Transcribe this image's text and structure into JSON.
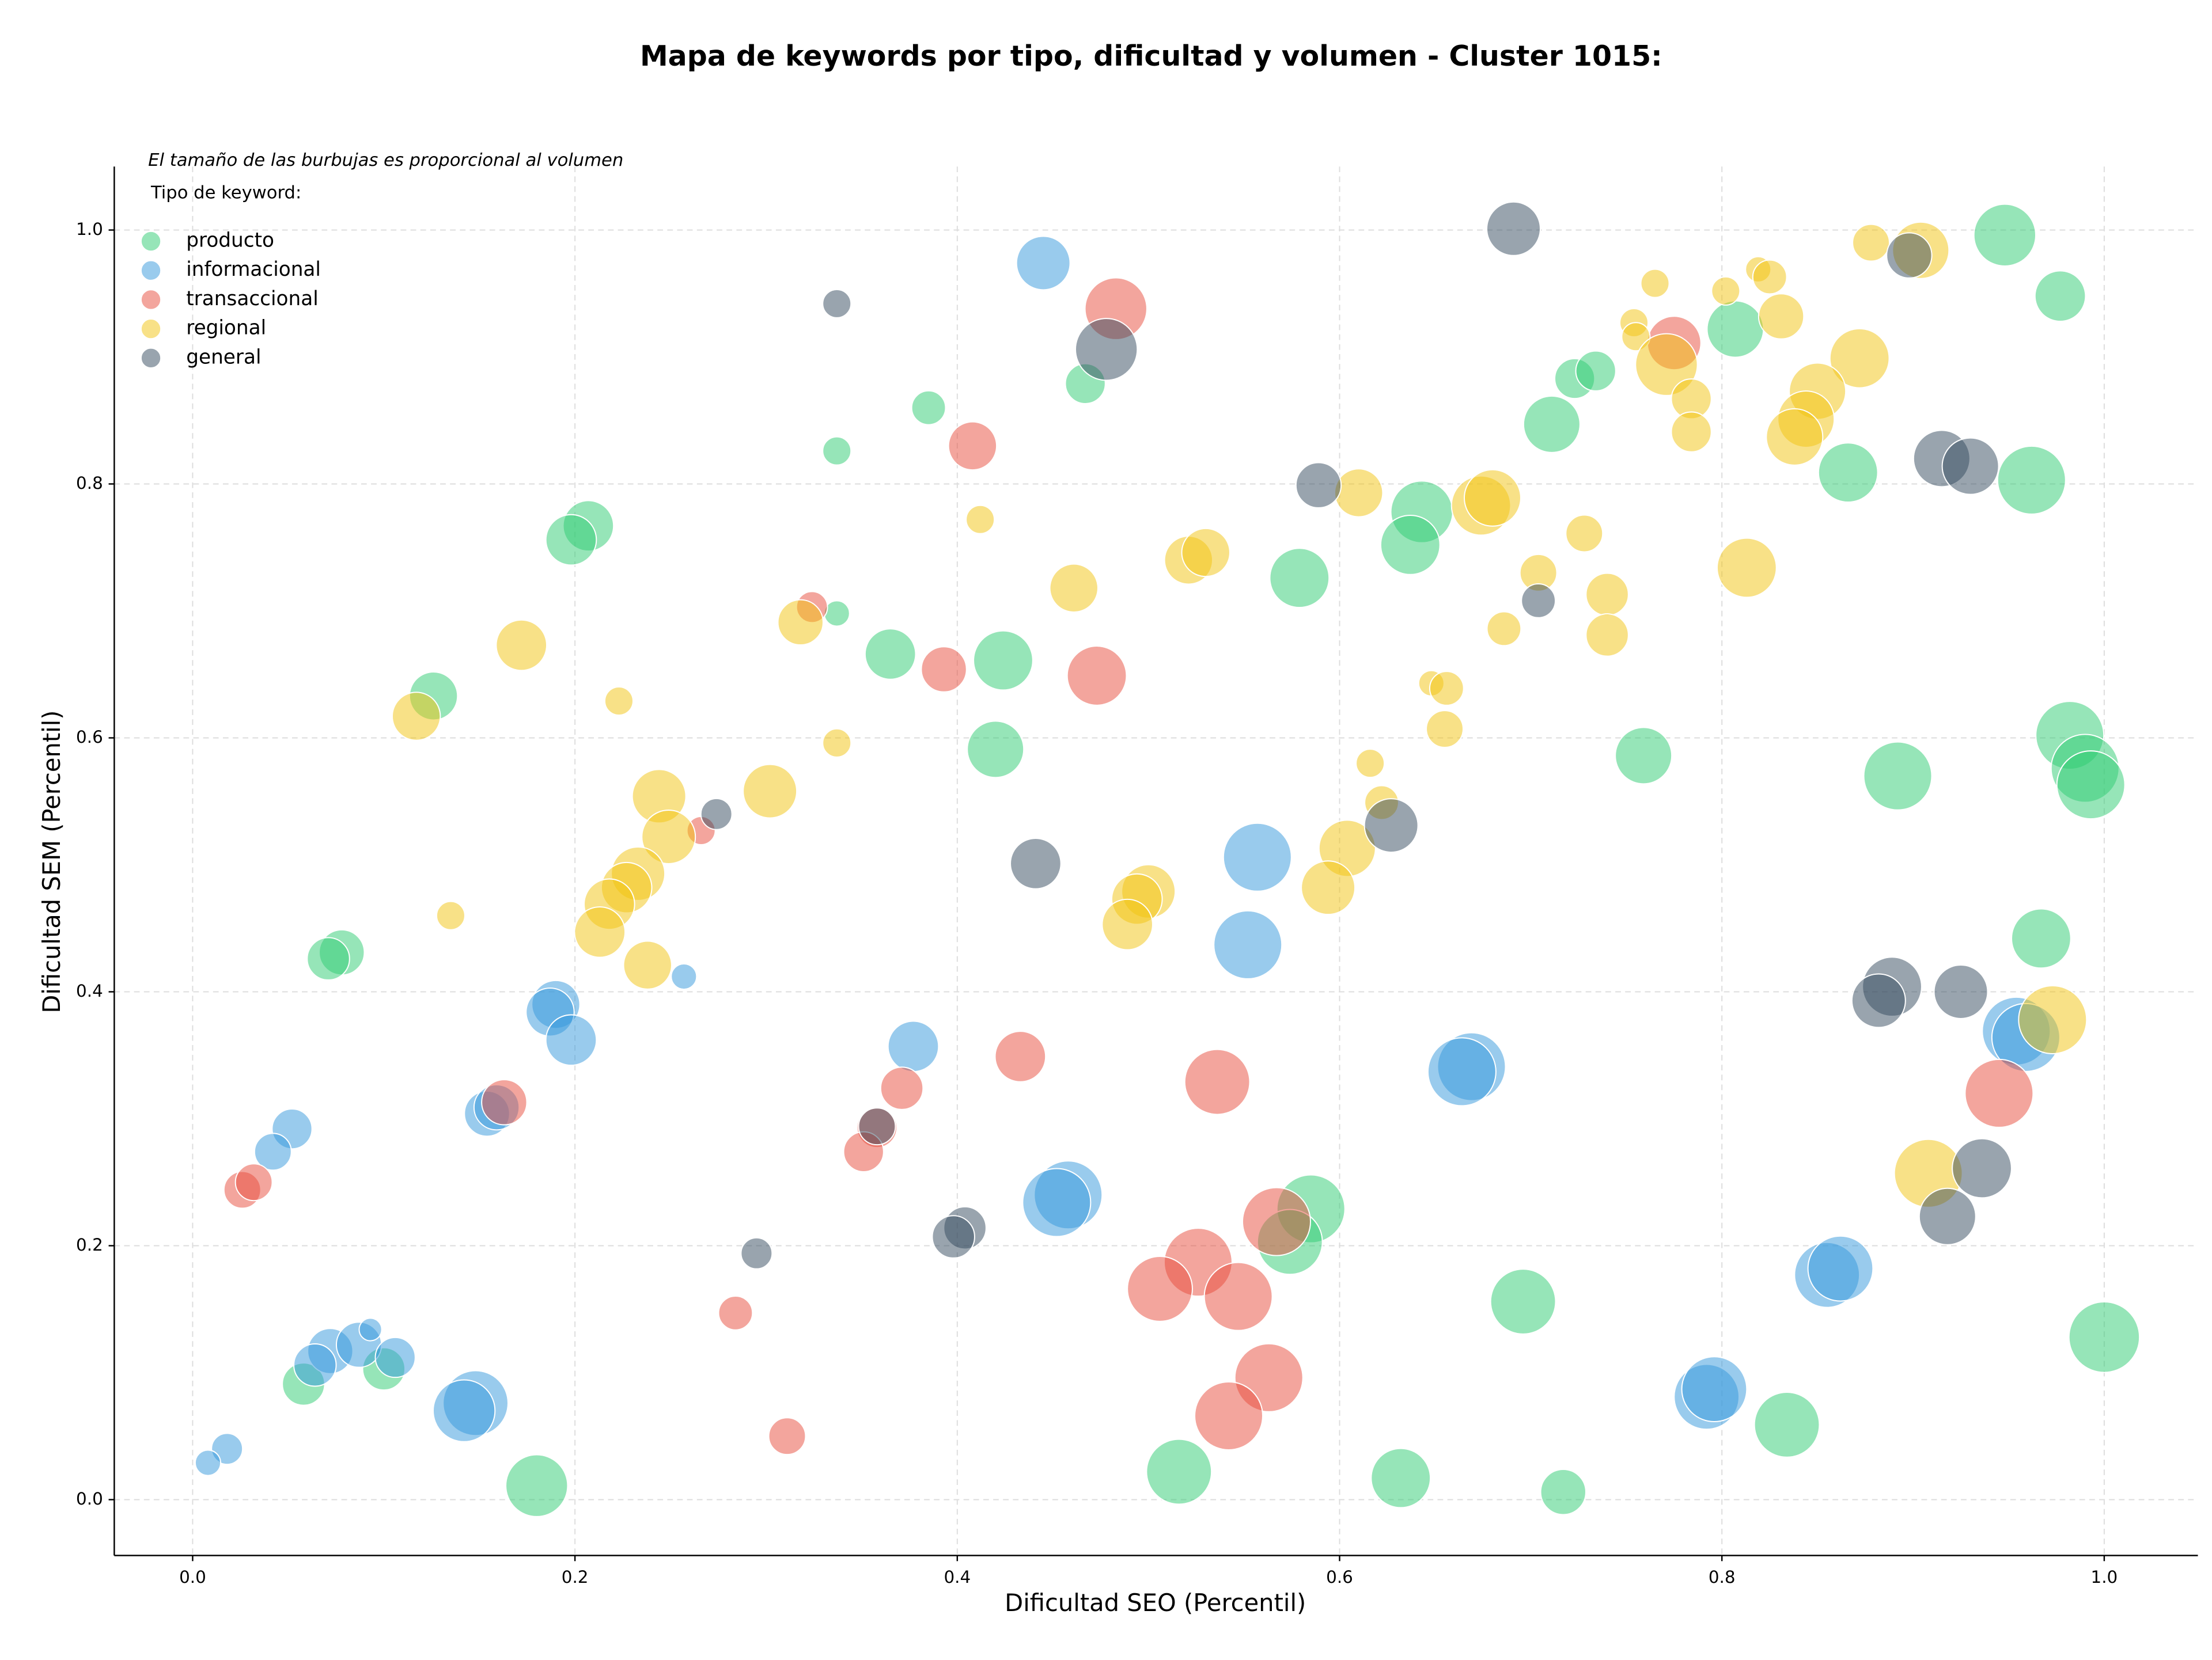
{
  "chart_data": {
    "type": "scatter",
    "title": "Mapa de keywords por tipo, dificultad y volumen - Cluster 1015:",
    "annotation": "El tamaño de las burbujas es proporcional al volumen",
    "legend_title": "Tipo de keyword:",
    "legend_location": "upper left",
    "x_label": "Dificultad SEO (Percentil)",
    "y_label": "Dificultad SEM (Percentil)",
    "xlim": [
      -0.041,
      1.049
    ],
    "ylim": [
      -0.044,
      1.05
    ],
    "xticks": [
      {
        "value": 0,
        "label": "0.0"
      },
      0.2,
      0.4,
      0.6,
      0.8,
      {
        "value": 1,
        "label": "1.0"
      }
    ],
    "yticks": [
      {
        "value": 0,
        "label": "0.0"
      },
      0.2,
      0.4,
      0.6,
      0.8,
      {
        "value": 1,
        "label": "1.0"
      }
    ],
    "grid": true,
    "series": [
      {
        "name": "producto",
        "color": "#2ecc71",
        "x": [
          0.948,
          0.977,
          0.807,
          0.723,
          0.734,
          0.711,
          0.866,
          0.962,
          0.467,
          0.385,
          0.337,
          0.207,
          0.198,
          0.643,
          0.637,
          0.579,
          0.337,
          0.365,
          0.424,
          0.126,
          0.42,
          0.759,
          0.892,
          0.982,
          0.99,
          0.993,
          0.967,
          0.078,
          0.071,
          0.585,
          0.574,
          0.696,
          1.0,
          0.834,
          0.516,
          0.632,
          0.717,
          0.18,
          0.058,
          0.1
        ],
        "y": [
          0.996,
          0.948,
          0.922,
          0.883,
          0.889,
          0.847,
          0.809,
          0.803,
          0.879,
          0.86,
          0.826,
          0.767,
          0.756,
          0.778,
          0.752,
          0.726,
          0.698,
          0.666,
          0.661,
          0.633,
          0.591,
          0.586,
          0.57,
          0.602,
          0.576,
          0.563,
          0.442,
          0.431,
          0.426,
          0.229,
          0.203,
          0.156,
          0.128,
          0.059,
          0.022,
          0.017,
          0.006,
          0.011,
          0.091,
          0.103
        ],
        "sizes": [
          480,
          320,
          400,
          200,
          200,
          400,
          440,
          580,
          200,
          144,
          100,
          320,
          320,
          480,
          440,
          440,
          81,
          320,
          440,
          290,
          400,
          400,
          580,
          580,
          580,
          580,
          440,
          256,
          225,
          580,
          530,
          530,
          625,
          530,
          530,
          440,
          256,
          480,
          225,
          225
        ]
      },
      {
        "name": "informacional",
        "color": "#3498db",
        "x": [
          0.445,
          0.557,
          0.552,
          0.257,
          0.19,
          0.187,
          0.198,
          0.377,
          0.154,
          0.159,
          0.052,
          0.042,
          0.669,
          0.664,
          0.954,
          0.959,
          0.458,
          0.452,
          0.855,
          0.862,
          0.792,
          0.796,
          0.148,
          0.142,
          0.072,
          0.087,
          0.106,
          0.064,
          0.093,
          0.018,
          0.008
        ],
        "y": [
          0.974,
          0.506,
          0.437,
          0.412,
          0.39,
          0.384,
          0.362,
          0.357,
          0.304,
          0.309,
          0.292,
          0.274,
          0.341,
          0.337,
          0.369,
          0.364,
          0.24,
          0.234,
          0.177,
          0.182,
          0.081,
          0.087,
          0.076,
          0.07,
          0.117,
          0.122,
          0.112,
          0.106,
          0.134,
          0.04,
          0.029
        ],
        "sizes": [
          360,
          580,
          580,
          81,
          290,
          290,
          320,
          320,
          256,
          256,
          200,
          170,
          580,
          580,
          580,
          580,
          580,
          580,
          530,
          530,
          530,
          530,
          530,
          480,
          256,
          256,
          200,
          225,
          64,
          121,
          81
        ]
      },
      {
        "name": "transaccional",
        "color": "#e74c3c",
        "x": [
          0.483,
          0.408,
          0.775,
          0.393,
          0.473,
          0.324,
          0.266,
          0.433,
          0.536,
          0.371,
          0.358,
          0.351,
          0.163,
          0.026,
          0.032,
          0.945,
          0.567,
          0.526,
          0.506,
          0.547,
          0.563,
          0.542,
          0.284,
          0.311
        ],
        "y": [
          0.938,
          0.83,
          0.911,
          0.654,
          0.649,
          0.703,
          0.527,
          0.349,
          0.329,
          0.324,
          0.293,
          0.274,
          0.313,
          0.244,
          0.25,
          0.32,
          0.219,
          0.187,
          0.166,
          0.16,
          0.096,
          0.066,
          0.147,
          0.05
        ],
        "sizes": [
          480,
          290,
          360,
          256,
          440,
          121,
          100,
          320,
          530,
          225,
          200,
          200,
          256,
          170,
          170,
          580,
          580,
          580,
          530,
          580,
          580,
          580,
          144,
          170
        ]
      },
      {
        "name": "regional",
        "color": "#f1c40f",
        "x": [
          0.904,
          0.878,
          0.765,
          0.802,
          0.819,
          0.825,
          0.831,
          0.754,
          0.755,
          0.771,
          0.784,
          0.784,
          0.872,
          0.85,
          0.844,
          0.838,
          0.813,
          0.61,
          0.674,
          0.68,
          0.728,
          0.704,
          0.74,
          0.74,
          0.686,
          0.521,
          0.53,
          0.461,
          0.412,
          0.318,
          0.172,
          0.117,
          0.223,
          0.337,
          0.302,
          0.648,
          0.656,
          0.655,
          0.616,
          0.622,
          0.604,
          0.594,
          0.5,
          0.494,
          0.489,
          0.244,
          0.249,
          0.233,
          0.227,
          0.218,
          0.213,
          0.238,
          0.135,
          0.973,
          0.908
        ],
        "y": [
          0.984,
          0.99,
          0.958,
          0.952,
          0.969,
          0.963,
          0.932,
          0.927,
          0.916,
          0.894,
          0.867,
          0.841,
          0.899,
          0.873,
          0.851,
          0.837,
          0.734,
          0.793,
          0.783,
          0.789,
          0.761,
          0.73,
          0.713,
          0.681,
          0.686,
          0.74,
          0.746,
          0.718,
          0.772,
          0.691,
          0.673,
          0.617,
          0.629,
          0.596,
          0.558,
          0.643,
          0.639,
          0.607,
          0.58,
          0.549,
          0.513,
          0.482,
          0.479,
          0.473,
          0.453,
          0.554,
          0.522,
          0.493,
          0.482,
          0.469,
          0.447,
          0.421,
          0.46,
          0.378,
          0.257
        ],
        "sizes": [
          400,
          170,
          100,
          100,
          81,
          144,
          256,
          100,
          100,
          480,
          200,
          200,
          440,
          400,
          400,
          400,
          440,
          290,
          440,
          400,
          170,
          170,
          225,
          225,
          144,
          290,
          290,
          290,
          100,
          256,
          320,
          290,
          100,
          100,
          360,
          81,
          144,
          170,
          100,
          144,
          400,
          360,
          360,
          320,
          320,
          360,
          360,
          360,
          320,
          320,
          320,
          290,
          100,
          580,
          580
        ]
      },
      {
        "name": "general",
        "color": "#34495e",
        "x": [
          0.691,
          0.898,
          0.478,
          0.337,
          0.589,
          0.915,
          0.93,
          0.704,
          0.627,
          0.274,
          0.441,
          0.889,
          0.882,
          0.925,
          0.936,
          0.918,
          0.358,
          0.404,
          0.398,
          0.295
        ],
        "y": [
          1.001,
          0.98,
          0.906,
          0.942,
          0.799,
          0.82,
          0.814,
          0.708,
          0.531,
          0.54,
          0.501,
          0.404,
          0.393,
          0.4,
          0.261,
          0.223,
          0.294,
          0.214,
          0.207,
          0.194
        ],
        "sizes": [
          360,
          256,
          480,
          100,
          256,
          400,
          400,
          144,
          360,
          121,
          320,
          440,
          360,
          360,
          440,
          400,
          170,
          225,
          225,
          121
        ]
      }
    ]
  }
}
